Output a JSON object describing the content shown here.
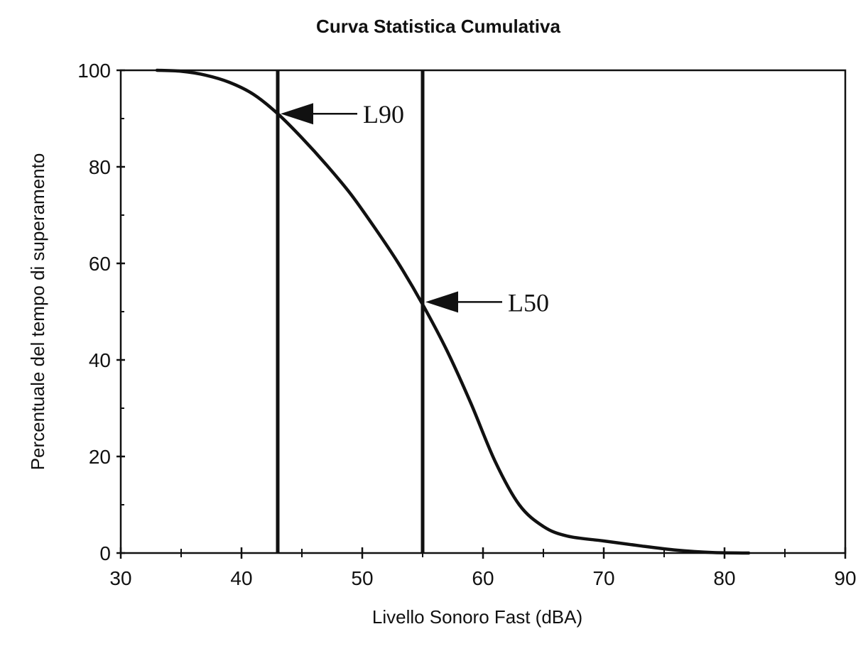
{
  "chart_data": {
    "type": "line",
    "title": "Curva Statistica Cumulativa",
    "xlabel": "Livello Sonoro Fast (dBA)",
    "ylabel": "Percentuale del tempo di superamento",
    "xlim": [
      30,
      90
    ],
    "ylim": [
      0,
      100
    ],
    "xticks": [
      30,
      40,
      50,
      60,
      70,
      80,
      90
    ],
    "yticks": [
      0,
      20,
      40,
      60,
      80,
      100
    ],
    "grid": false,
    "series": [
      {
        "x": [
          33,
          35,
          37,
          39,
          41,
          43,
          45,
          47,
          49,
          51,
          53,
          55,
          57,
          59,
          61,
          63,
          65,
          67,
          70,
          73,
          76,
          79,
          82
        ],
        "values": [
          100,
          99.8,
          99,
          97.5,
          95,
          91,
          86,
          80.5,
          74.5,
          67.5,
          60,
          51.5,
          42,
          31,
          19,
          10,
          5.5,
          3.5,
          2.5,
          1.5,
          0.6,
          0.1,
          0
        ]
      }
    ],
    "reference_lines": [
      {
        "label": "L90",
        "x": 43,
        "y": 91
      },
      {
        "label": "L50",
        "x": 55,
        "y": 52
      }
    ]
  }
}
